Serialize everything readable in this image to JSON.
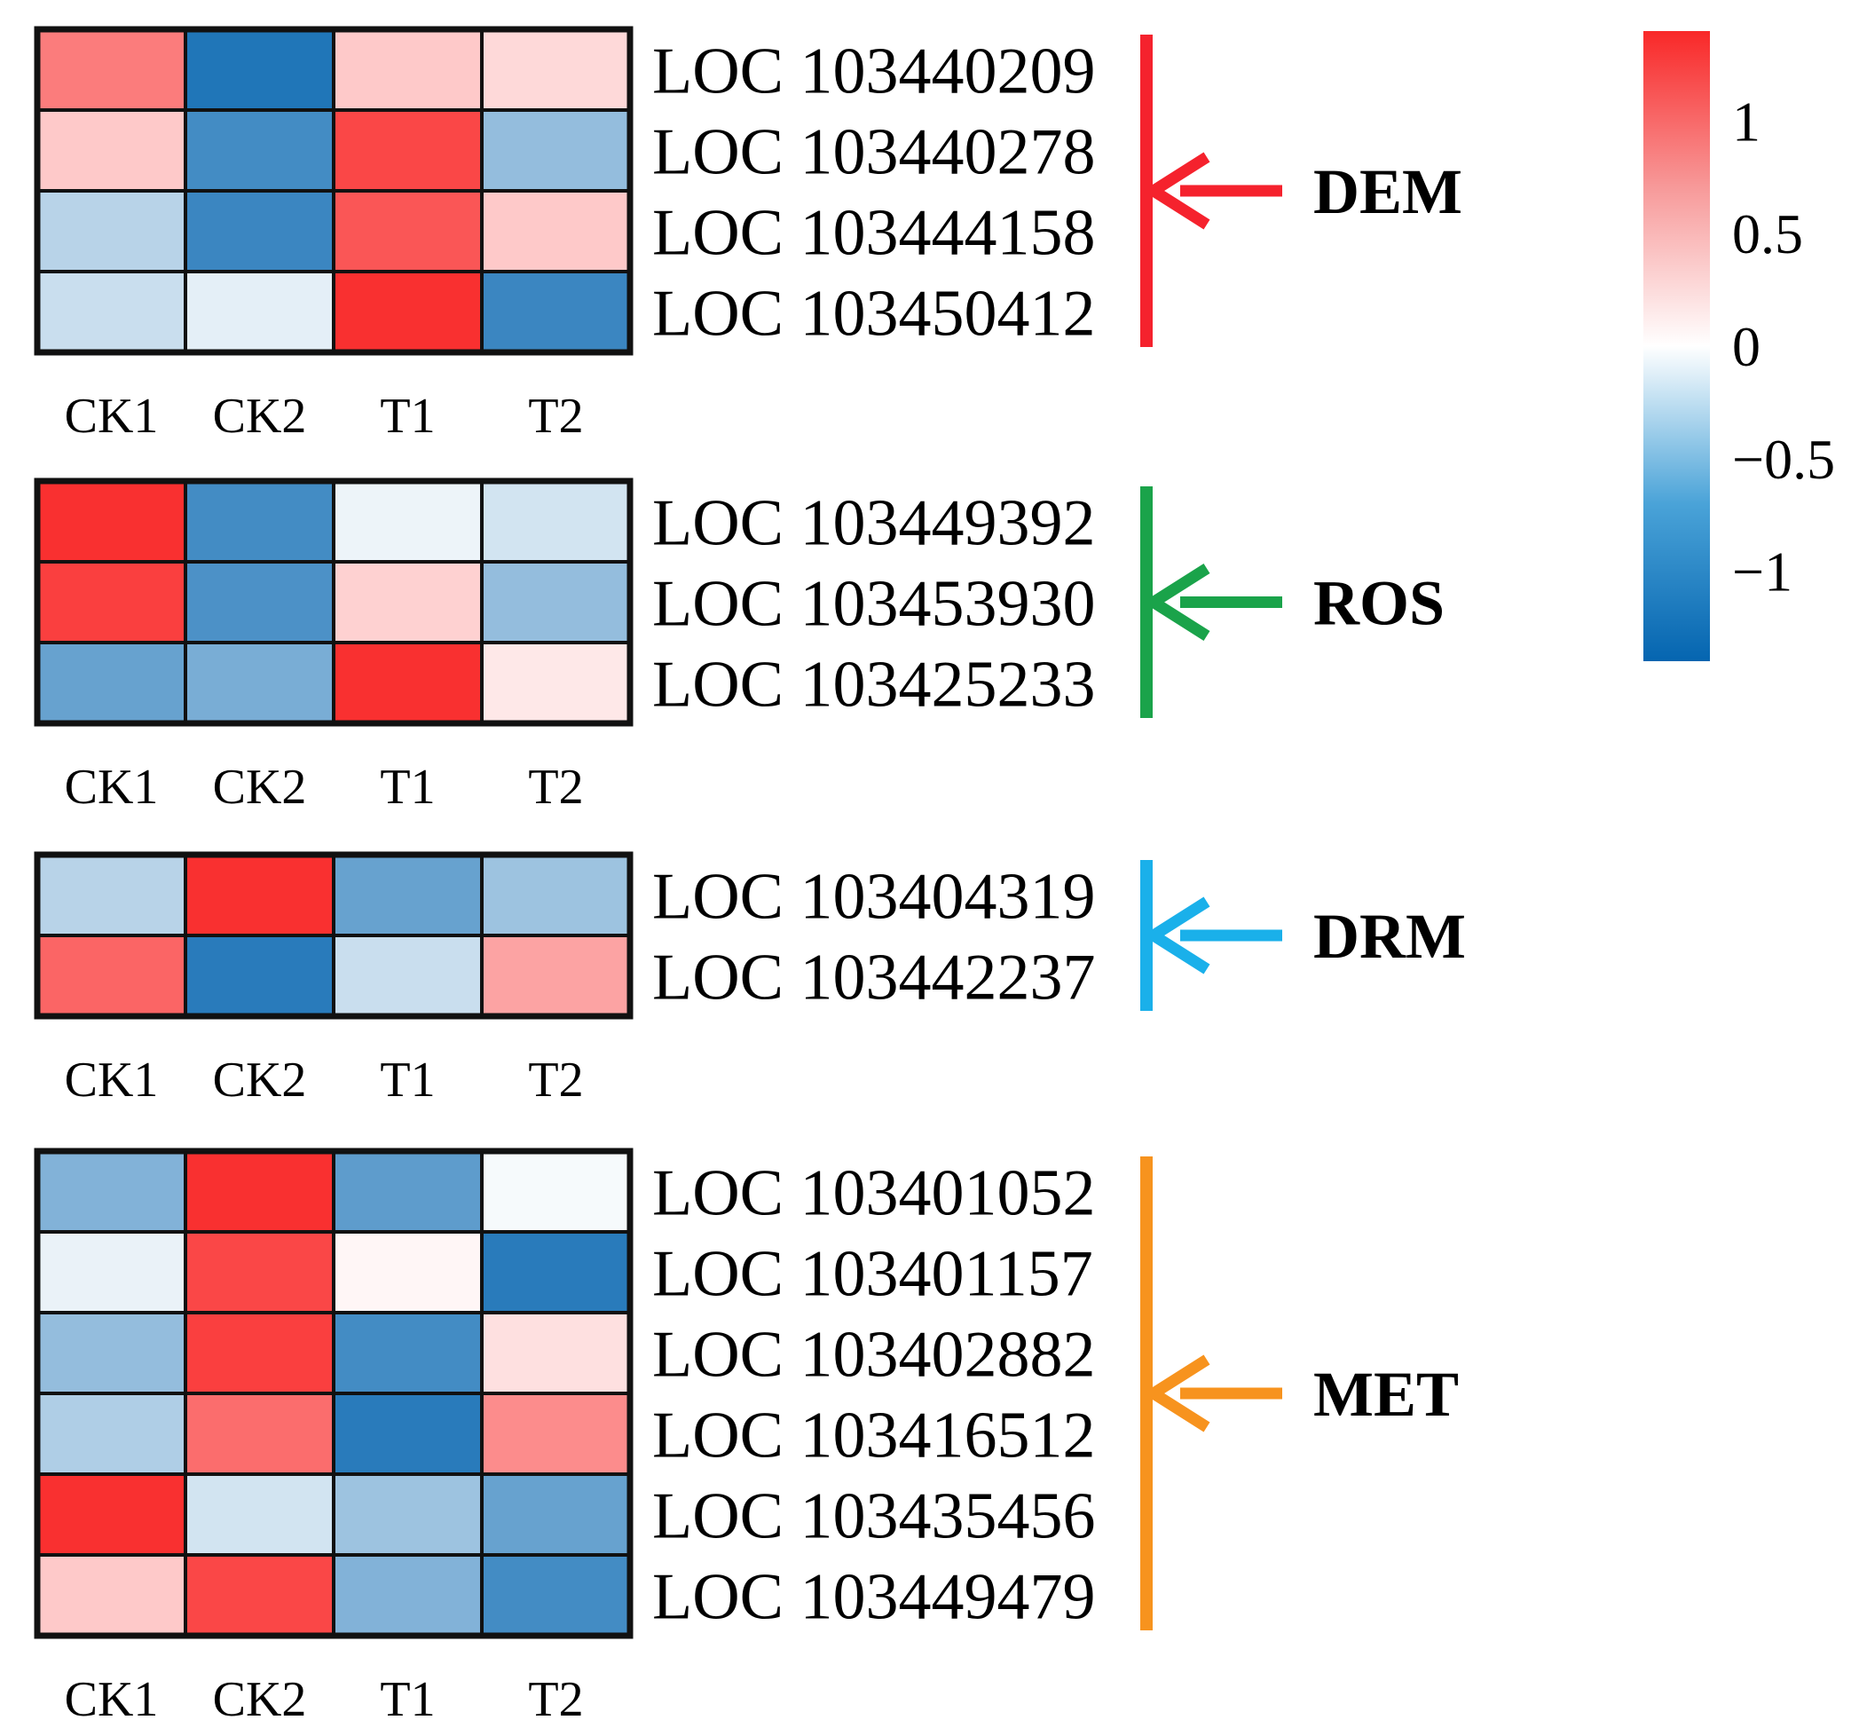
{
  "chart_data": {
    "type": "heatmap",
    "columns": [
      "CK1",
      "CK2",
      "T1",
      "T2"
    ],
    "color_scale": {
      "min": -1.4,
      "max": 1.4,
      "ticks": [
        {
          "value": 1,
          "label": "1"
        },
        {
          "value": 0.5,
          "label": "0.5"
        },
        {
          "value": 0,
          "label": "0"
        },
        {
          "value": -0.5,
          "label": "−0.5"
        },
        {
          "value": -1,
          "label": "−1"
        }
      ],
      "colors": {
        "low": "#0565b0",
        "mid": "#ffffff",
        "high": "#f92828"
      }
    },
    "groups": [
      {
        "name": "DEM",
        "color": "#f5222d",
        "rows": [
          {
            "gene": "LOC 103440209",
            "values": [
              0.85,
              -1.25,
              0.35,
              0.25
            ]
          },
          {
            "gene": "LOC 103440278",
            "values": [
              0.35,
              -1.05,
              1.2,
              -0.6
            ]
          },
          {
            "gene": "LOC 103444158",
            "values": [
              -0.4,
              -1.1,
              1.1,
              0.35
            ]
          },
          {
            "gene": "LOC 103450412",
            "values": [
              -0.3,
              -0.15,
              1.35,
              -1.1
            ]
          }
        ]
      },
      {
        "name": "ROS",
        "color": "#1aa34a",
        "rows": [
          {
            "gene": "LOC 103449392",
            "values": [
              1.35,
              -1.05,
              -0.1,
              -0.25
            ]
          },
          {
            "gene": "LOC 103453930",
            "values": [
              1.25,
              -1.0,
              0.3,
              -0.6
            ]
          },
          {
            "gene": "LOC 103425233",
            "values": [
              -0.85,
              -0.75,
              1.35,
              0.15
            ]
          }
        ]
      },
      {
        "name": "DRM",
        "color": "#1ab0ea",
        "rows": [
          {
            "gene": "LOC 103404319",
            "values": [
              -0.4,
              1.35,
              -0.85,
              -0.55
            ]
          },
          {
            "gene": "LOC 103442237",
            "values": [
              1.0,
              -1.2,
              -0.3,
              0.6
            ]
          }
        ]
      },
      {
        "name": "MET",
        "color": "#f7931e",
        "rows": [
          {
            "gene": "LOC 103401052",
            "values": [
              -0.7,
              1.35,
              -0.9,
              -0.05
            ]
          },
          {
            "gene": "LOC 103401157",
            "values": [
              -0.12,
              1.2,
              0.06,
              -1.2
            ]
          },
          {
            "gene": "LOC 103402882",
            "values": [
              -0.6,
              1.25,
              -1.05,
              0.2
            ]
          },
          {
            "gene": "LOC 103416512",
            "values": [
              -0.45,
              0.95,
              -1.2,
              0.75
            ]
          },
          {
            "gene": "LOC 103435456",
            "values": [
              1.35,
              -0.25,
              -0.55,
              -0.85
            ]
          },
          {
            "gene": "LOC 103449479",
            "values": [
              0.35,
              1.2,
              -0.7,
              -1.05
            ]
          }
        ]
      }
    ]
  }
}
